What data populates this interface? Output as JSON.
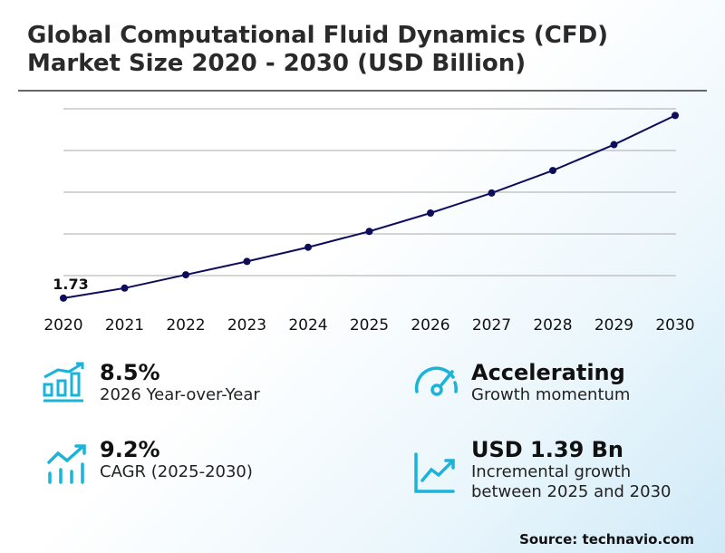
{
  "title_line1": "Global Computational Fluid Dynamics (CFD)",
  "title_line2": "Market Size 2020 - 2030 (USD Billion)",
  "chart_data": {
    "type": "line",
    "title": "Global Computational Fluid Dynamics (CFD) Market Size 2020 - 2030 (USD Billion)",
    "categories": [
      "2020",
      "2021",
      "2022",
      "2023",
      "2024",
      "2025",
      "2026",
      "2027",
      "2028",
      "2029",
      "2030"
    ],
    "values": [
      1.73,
      1.85,
      2.01,
      2.17,
      2.34,
      2.53,
      2.75,
      2.99,
      3.26,
      3.57,
      3.92
    ],
    "data_labels": [
      {
        "index": 0,
        "text": "1.73"
      }
    ],
    "gridlines": [
      2.0,
      2.5,
      3.0,
      3.5,
      4.0
    ],
    "grid": true,
    "ylim": [
      1.7,
      4.0
    ],
    "line_color": "#0d0d5c"
  },
  "stats": [
    {
      "value": "8.5%",
      "label": "2026 Year-over-Year",
      "icon": "bar-chart-growth-icon"
    },
    {
      "value": "Accelerating",
      "label": "Growth momentum",
      "icon": "speedometer-icon"
    },
    {
      "value": "9.2%",
      "label": "CAGR (2025-2030)",
      "icon": "trend-up-bars-icon"
    },
    {
      "value": "USD 1.39 Bn",
      "label_line1": "Incremental growth",
      "label_line2": "between 2025 and 2030",
      "icon": "line-chart-up-icon"
    }
  ],
  "accent_color": "#1ab3d9",
  "source": "Source: technavio.com"
}
